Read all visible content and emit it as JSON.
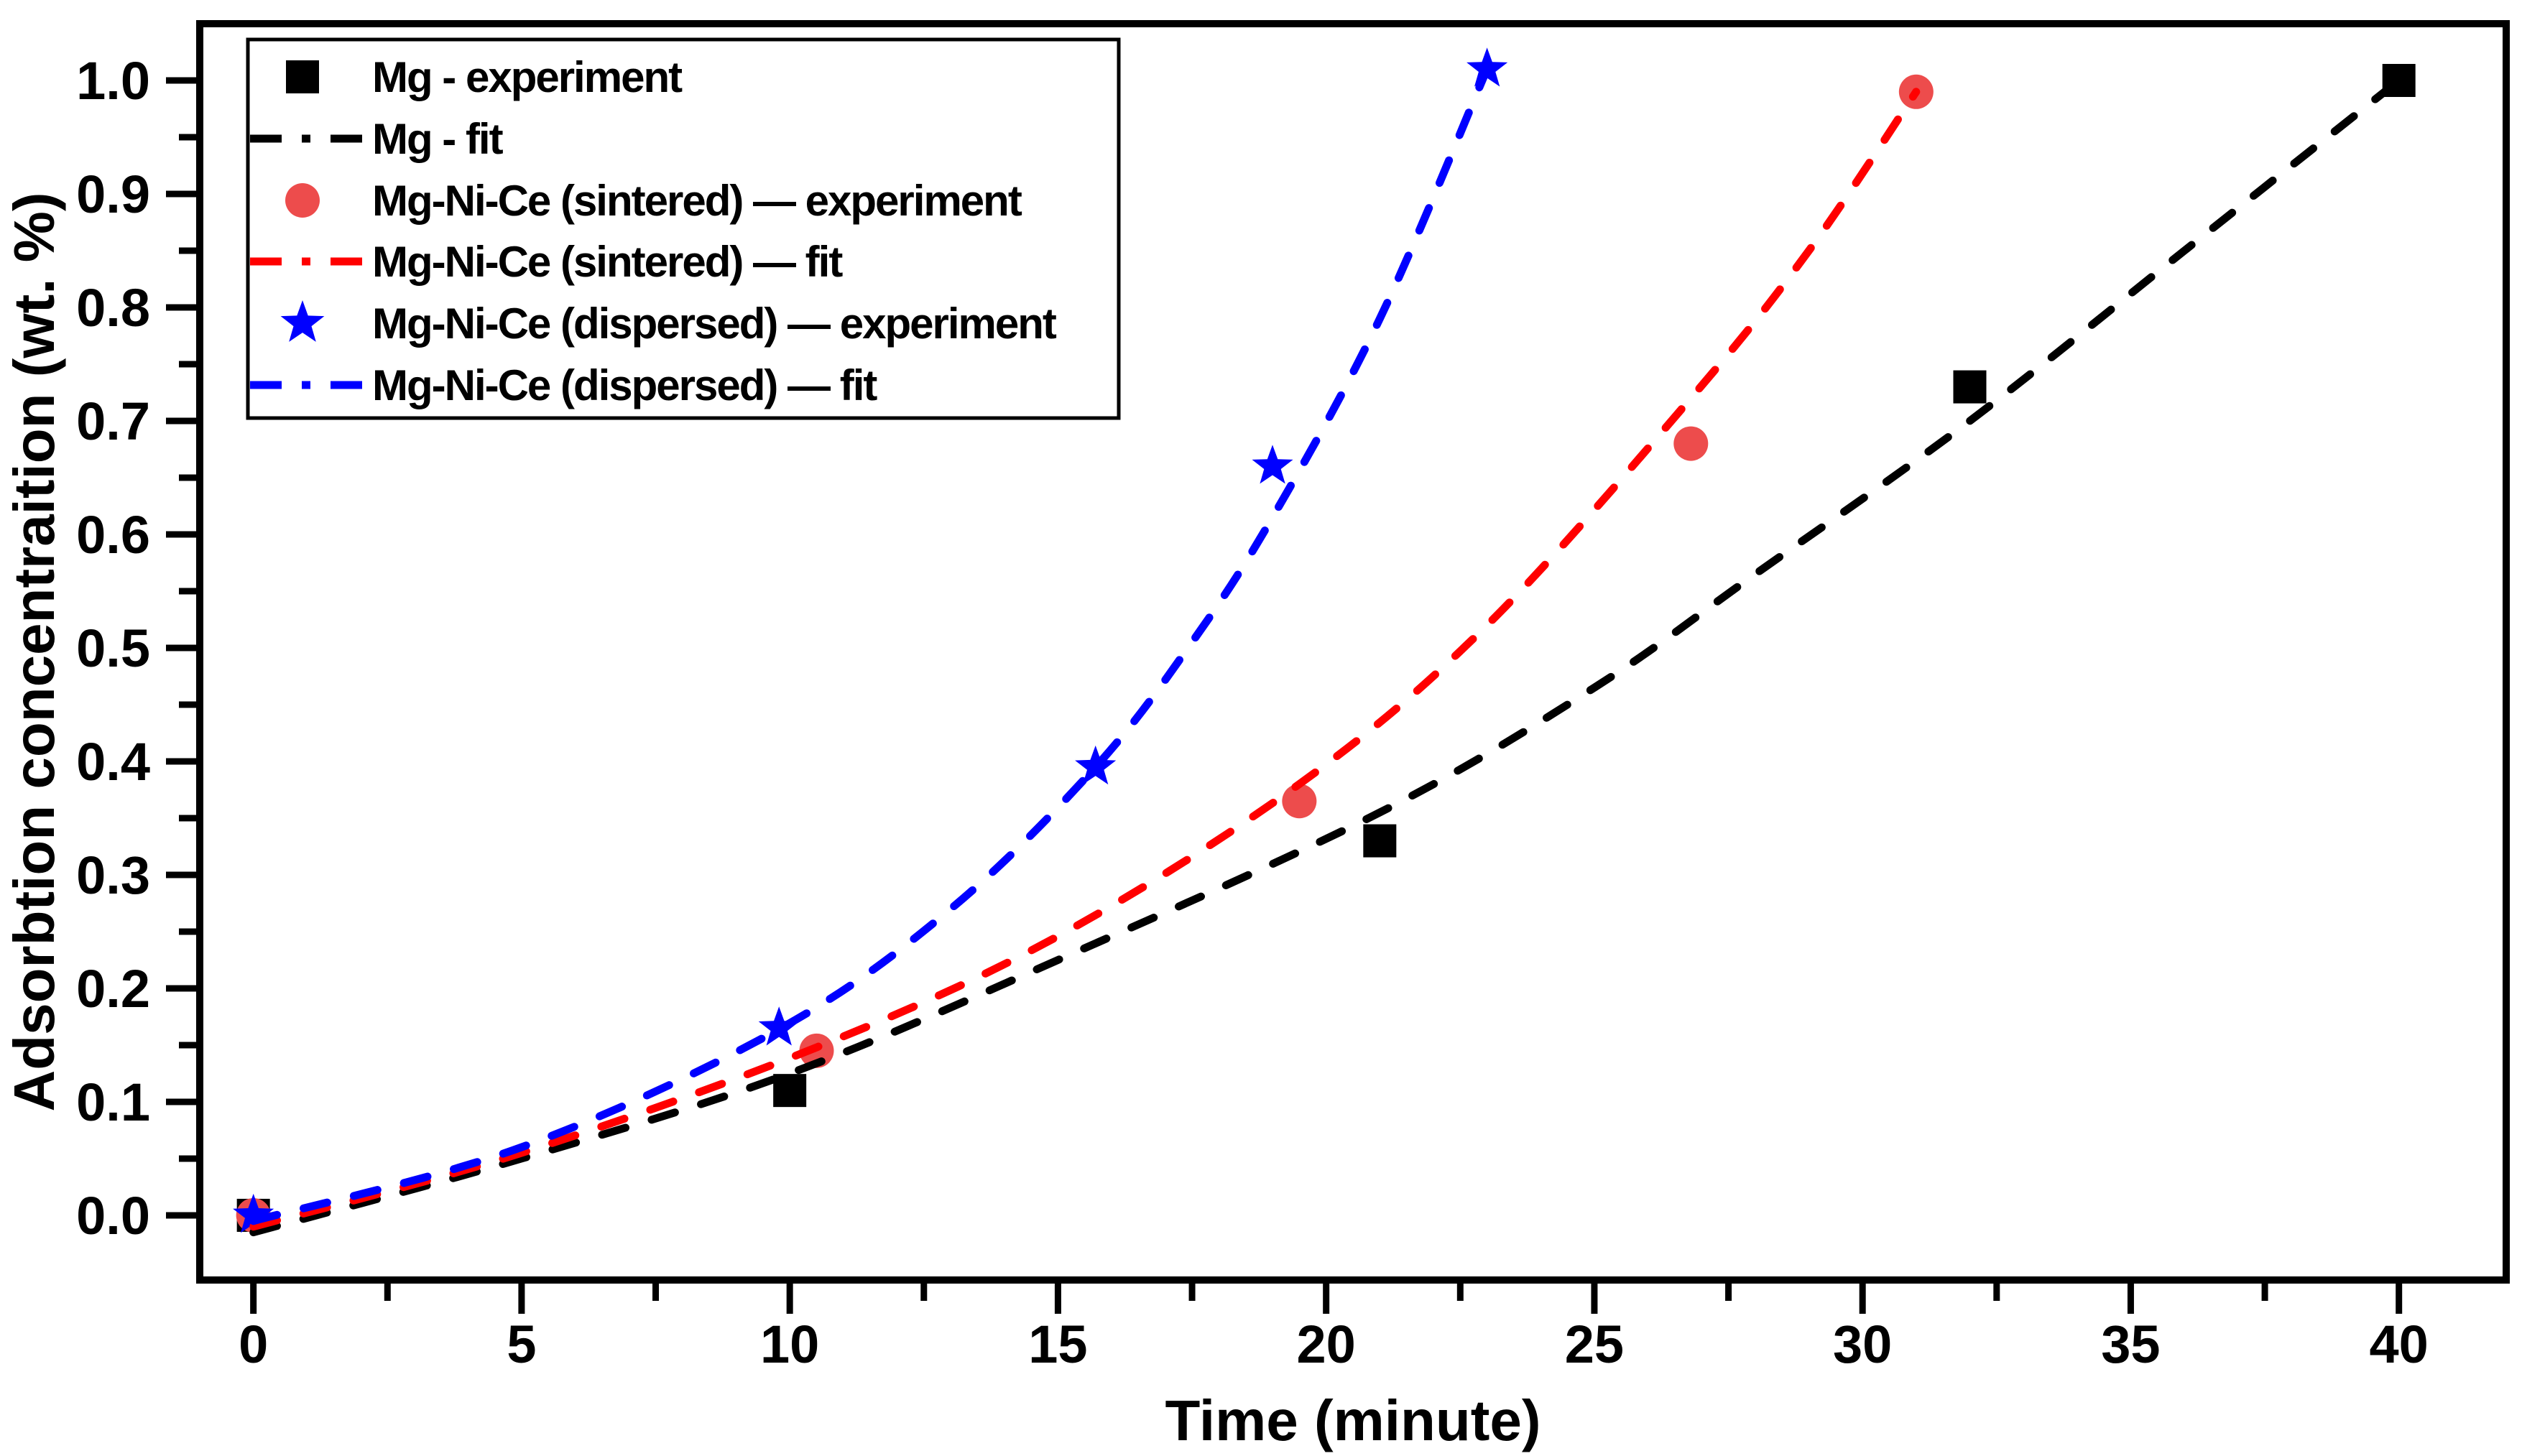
{
  "figure": {
    "background": "#ffffff"
  },
  "colors": {
    "black": "#000000",
    "red_line": "#ff0000",
    "red_marker": "#ed4c4c",
    "blue": "#0000ff"
  },
  "chart_data": {
    "type": "scatter",
    "title": "",
    "xlabel": "Time (minute)",
    "ylabel": "Adsorbtion concentraition (wt. %)",
    "xlim": [
      -1,
      42
    ],
    "ylim": [
      -0.057,
      1.05
    ],
    "grid": false,
    "legend_position": "top-left",
    "x_major_ticks": [
      0,
      5,
      10,
      15,
      20,
      25,
      30,
      35,
      40
    ],
    "x_tick_labels": [
      "0",
      "5",
      "10",
      "15",
      "20",
      "25",
      "30",
      "35",
      "40"
    ],
    "x_minor_ticks": [
      2.5,
      7.5,
      12.5,
      17.5,
      22.5,
      27.5,
      32.5,
      37.5
    ],
    "y_major_ticks": [
      0.0,
      0.1,
      0.2,
      0.3,
      0.4,
      0.5,
      0.6,
      0.7,
      0.8,
      0.9,
      1.0
    ],
    "y_tick_labels": [
      "0.0",
      "0.1",
      "0.2",
      "0.3",
      "0.4",
      "0.5",
      "0.6",
      "0.7",
      "0.8",
      "0.9",
      "1.0"
    ],
    "y_minor_ticks": [
      0.05,
      0.15,
      0.25,
      0.35,
      0.45,
      0.55,
      0.65,
      0.75,
      0.85,
      0.95
    ],
    "series": [
      {
        "name": "Mg - experiment",
        "kind": "scatter",
        "marker": "square",
        "color": "#000000",
        "points": [
          [
            0,
            0.0
          ],
          [
            10,
            0.11
          ],
          [
            21,
            0.33
          ],
          [
            32,
            0.73
          ],
          [
            40,
            1.0
          ]
        ]
      },
      {
        "name": "Mg - fit",
        "kind": "line",
        "linestyle": "dashed",
        "color": "#000000",
        "points": [
          [
            0,
            -0.015
          ],
          [
            5,
            0.05
          ],
          [
            10,
            0.125
          ],
          [
            15,
            0.225
          ],
          [
            21,
            0.355
          ],
          [
            25,
            0.465
          ],
          [
            28,
            0.565
          ],
          [
            32,
            0.7
          ],
          [
            36,
            0.85
          ],
          [
            40,
            1.0
          ]
        ]
      },
      {
        "name": "Mg-Ni-Ce (sintered) — experiment",
        "kind": "scatter",
        "marker": "circle",
        "color": "#ed4c4c",
        "points": [
          [
            0,
            0.0
          ],
          [
            10.5,
            0.145
          ],
          [
            19.5,
            0.365
          ],
          [
            26.8,
            0.68
          ],
          [
            31,
            0.99
          ]
        ]
      },
      {
        "name": "Mg-Ni-Ce (sintered) — fit",
        "kind": "line",
        "linestyle": "dashed",
        "color": "#ff0000",
        "points": [
          [
            0,
            -0.01
          ],
          [
            5,
            0.055
          ],
          [
            10.5,
            0.148
          ],
          [
            15,
            0.246
          ],
          [
            19.5,
            0.38
          ],
          [
            23,
            0.52
          ],
          [
            26.8,
            0.72
          ],
          [
            29,
            0.85
          ],
          [
            31,
            0.99
          ]
        ]
      },
      {
        "name": "Mg-Ni-Ce (dispersed) — experiment",
        "kind": "scatter",
        "marker": "star",
        "color": "#0000ff",
        "points": [
          [
            0,
            0.0
          ],
          [
            9.8,
            0.165
          ],
          [
            15.7,
            0.395
          ],
          [
            19,
            0.66
          ],
          [
            23,
            1.01
          ]
        ]
      },
      {
        "name": "Mg-Ni-Ce (dispersed) — fit",
        "kind": "line",
        "linestyle": "dashed",
        "color": "#0000ff",
        "points": [
          [
            0,
            -0.005
          ],
          [
            5,
            0.06
          ],
          [
            9.8,
            0.164
          ],
          [
            13,
            0.27
          ],
          [
            15.7,
            0.395
          ],
          [
            17.5,
            0.505
          ],
          [
            19,
            0.615
          ],
          [
            21,
            0.79
          ],
          [
            23,
            1.01
          ]
        ]
      }
    ],
    "legend": {
      "entries": [
        {
          "label": "Mg - experiment",
          "sample": "square",
          "color": "#000000"
        },
        {
          "label": "Mg - fit",
          "sample": "dashline",
          "color": "#000000"
        },
        {
          "label": "Mg-Ni-Ce (sintered) — experiment",
          "sample": "circle",
          "color": "#ed4c4c"
        },
        {
          "label": "Mg-Ni-Ce (sintered) — fit",
          "sample": "dashline",
          "color": "#ff0000"
        },
        {
          "label": "Mg-Ni-Ce (dispersed) — experiment",
          "sample": "star",
          "color": "#0000ff"
        },
        {
          "label": "Mg-Ni-Ce (dispersed) — fit",
          "sample": "dashline",
          "color": "#0000ff"
        }
      ]
    }
  }
}
